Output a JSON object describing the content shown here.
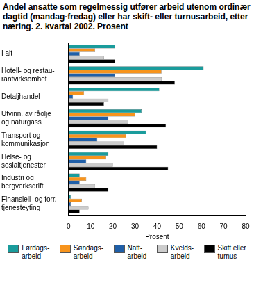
{
  "chart_data": {
    "type": "bar",
    "orientation": "horizontal",
    "title": "Andel ansatte som regelmessig utfører arbeid utenom ordinær dagtid (mandag-fredag) eller har skift- eller turnusarbeid, etter næring. 2. kvartal 2002. Prosent",
    "xlabel": "Prosent",
    "categories": [
      "I alt",
      "Hotell- og restau-\nrantvirksomhet",
      "Detaljhandel",
      "Utvinn. av råolje\nog naturgass",
      "Transport og\nkommunikasjon",
      "Helse- og\nsosialtjenester",
      "Industri og\nbergverksdrift",
      "Finansiell- og forr.-\ntjenesteyting"
    ],
    "series": [
      {
        "name": "Lørdags-\narbeid",
        "color": "#1a9c9c",
        "values": [
          21,
          61,
          41,
          33,
          35,
          18,
          5,
          1
        ]
      },
      {
        "name": "Søndags-\narbeid",
        "color": "#f7941d",
        "values": [
          12,
          42,
          7,
          30,
          26,
          17,
          8,
          6
        ]
      },
      {
        "name": "Natt-\narbeid",
        "color": "#1f5fa8",
        "values": [
          5,
          21,
          2,
          18,
          13,
          8,
          5,
          1
        ]
      },
      {
        "name": "Kvelds-\narbeid",
        "color": "#cccccc",
        "values": [
          16,
          42,
          18,
          27,
          25,
          20,
          12,
          9
        ]
      },
      {
        "name": "Skift eller\nturnus",
        "color": "#000000",
        "values": [
          21,
          48,
          16,
          44,
          40,
          45,
          18,
          5
        ]
      }
    ],
    "xlim": [
      0,
      80
    ],
    "xticks": [
      0,
      10,
      20,
      30,
      40,
      50,
      60,
      70,
      80
    ],
    "grid": false,
    "legend": "bottom"
  }
}
